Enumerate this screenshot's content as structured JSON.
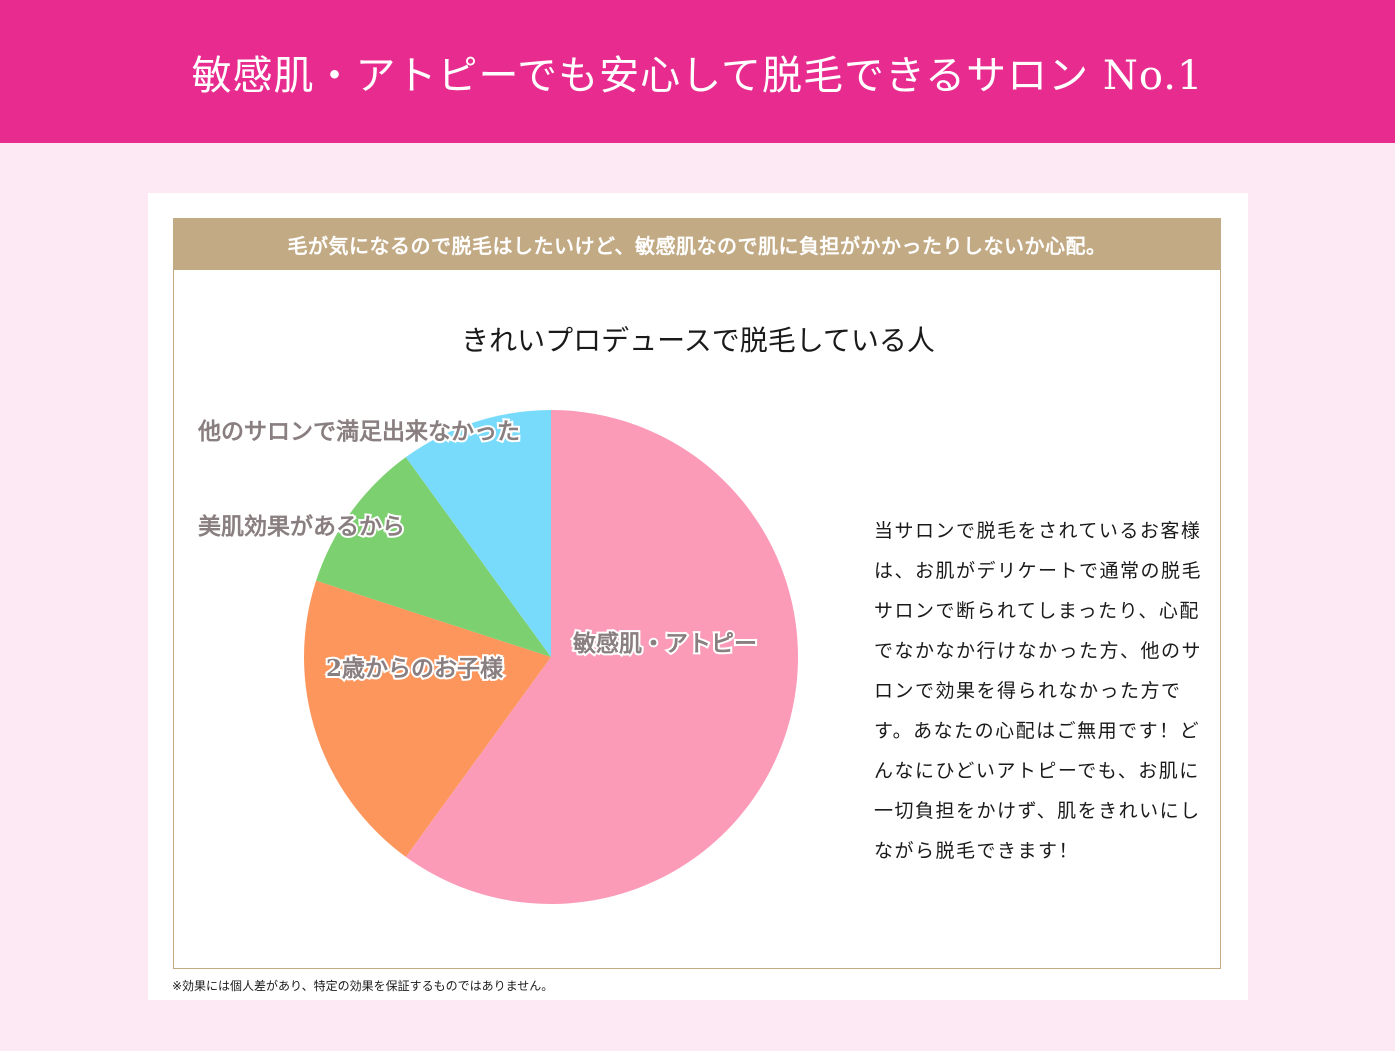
{
  "header": {
    "title": "敏感肌・アトピーでも安心して脱毛できるサロン No.1"
  },
  "concern": "毛が気になるので脱毛はしたいけど、敏感肌なので肌に負担がかかったりしないか心配。",
  "description": "当サロンで脱毛をされているお客様は、お肌がデリケートで通常の脱毛サロンで断られてしまったり、心配でなかなか行けなかった方、他のサロンで効果を得られなかった方です。あなたの心配はご無用です！どんなにひどいアトピーでも、お肌に一切負担をかけず、肌をきれいにしながら脱毛できます！",
  "note": "※効果には個人差があり、特定の効果を保証するものではありません。",
  "chart_data": {
    "type": "pie",
    "title": "きれいプロデュースで脱毛している人",
    "slices": [
      {
        "label": "敏感肌・アトピー",
        "value": 60,
        "color": "#fb9bb8"
      },
      {
        "label": "2歳からのお子様",
        "value": 20,
        "color": "#fd965c"
      },
      {
        "label": "美肌効果があるから",
        "value": 10,
        "color": "#7dd070"
      },
      {
        "label": "他のサロンで満足出来なかった",
        "value": 10,
        "color": "#79dbfb"
      }
    ]
  }
}
